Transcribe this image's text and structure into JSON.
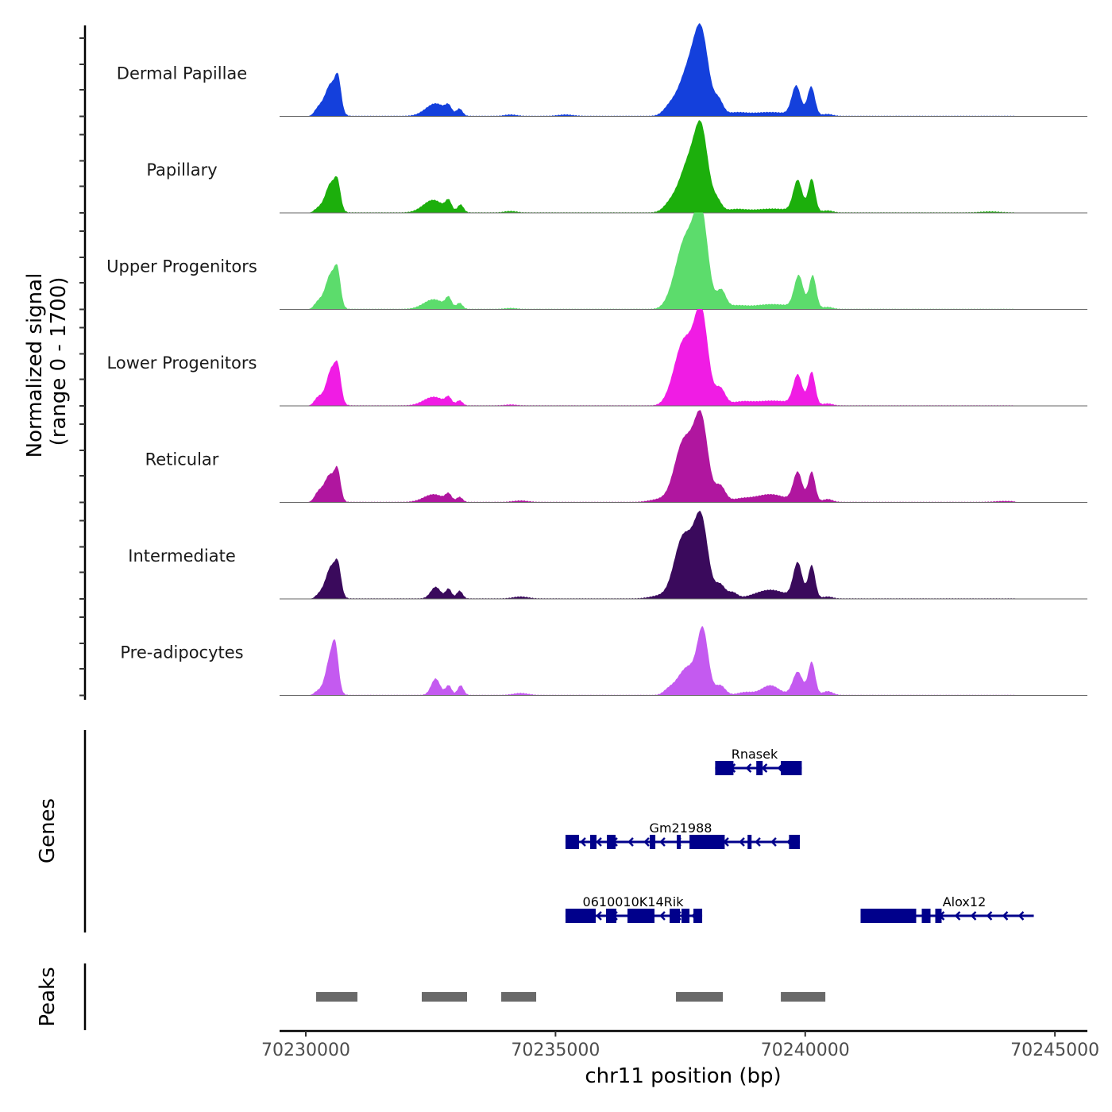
{
  "chart_data": {
    "type": "area",
    "title": "",
    "ylabel": "Normalized signal\n(range 0 - 1700)",
    "ylabel_lines": [
      "Normalized signal",
      "(range 0 - 1700)"
    ],
    "xlabel": "chr11 position (bp)",
    "xlim": [
      70229475,
      70245650
    ],
    "ylim": [
      0,
      1700
    ],
    "x_ticks": [
      70230000,
      70235000,
      70240000,
      70245000
    ],
    "x_tick_labels": [
      "70230000",
      "70235000",
      "70240000",
      "70245000"
    ],
    "grid": false,
    "tracks": [
      {
        "name": "Dermal Papillae",
        "color": "#1440DC",
        "peaks": [
          [
            70230500,
            120,
            0.33
          ],
          [
            70230650,
            60,
            0.28
          ],
          [
            70230250,
            80,
            0.07
          ],
          [
            70232600,
            200,
            0.13
          ],
          [
            70232860,
            60,
            0.07
          ],
          [
            70233080,
            60,
            0.07
          ],
          [
            70234100,
            120,
            0.015
          ],
          [
            70235200,
            150,
            0.015
          ],
          [
            70237270,
            120,
            0.06
          ],
          [
            70237700,
            220,
            0.52
          ],
          [
            70237930,
            140,
            0.62
          ],
          [
            70238270,
            90,
            0.14
          ],
          [
            70238600,
            200,
            0.03
          ],
          [
            70239300,
            400,
            0.04
          ],
          [
            70239820,
            90,
            0.3
          ],
          [
            70240120,
            75,
            0.3
          ],
          [
            70240450,
            100,
            0.02
          ]
        ]
      },
      {
        "name": "Papillary",
        "color": "#1CAF0C",
        "peaks": [
          [
            70230500,
            110,
            0.3
          ],
          [
            70230640,
            60,
            0.22
          ],
          [
            70230250,
            80,
            0.04
          ],
          [
            70232550,
            200,
            0.13
          ],
          [
            70232860,
            60,
            0.1
          ],
          [
            70233100,
            60,
            0.08
          ],
          [
            70234100,
            120,
            0.015
          ],
          [
            70237270,
            120,
            0.05
          ],
          [
            70237700,
            220,
            0.55
          ],
          [
            70237930,
            130,
            0.6
          ],
          [
            70238240,
            90,
            0.1
          ],
          [
            70238600,
            200,
            0.03
          ],
          [
            70239350,
            400,
            0.04
          ],
          [
            70239850,
            90,
            0.32
          ],
          [
            70240130,
            70,
            0.34
          ],
          [
            70240450,
            100,
            0.02
          ],
          [
            70243700,
            200,
            0.01
          ]
        ]
      },
      {
        "name": "Upper Progenitors",
        "color": "#5CDC6C",
        "peaks": [
          [
            70230500,
            110,
            0.36
          ],
          [
            70230640,
            60,
            0.28
          ],
          [
            70230250,
            80,
            0.07
          ],
          [
            70232560,
            200,
            0.1
          ],
          [
            70232860,
            60,
            0.1
          ],
          [
            70233080,
            60,
            0.06
          ],
          [
            70234100,
            120,
            0.01
          ],
          [
            70237270,
            120,
            0.04
          ],
          [
            70237500,
            160,
            0.3
          ],
          [
            70237720,
            200,
            0.6
          ],
          [
            70237930,
            130,
            0.72
          ],
          [
            70238320,
            90,
            0.18
          ],
          [
            70238600,
            200,
            0.03
          ],
          [
            70239350,
            400,
            0.05
          ],
          [
            70239870,
            90,
            0.33
          ],
          [
            70240150,
            70,
            0.34
          ],
          [
            70240450,
            100,
            0.02
          ]
        ]
      },
      {
        "name": "Lower Progenitors",
        "color": "#F01CE4",
        "peaks": [
          [
            70230520,
            110,
            0.38
          ],
          [
            70230650,
            60,
            0.24
          ],
          [
            70230250,
            80,
            0.08
          ],
          [
            70232560,
            200,
            0.09
          ],
          [
            70232860,
            60,
            0.07
          ],
          [
            70233080,
            60,
            0.05
          ],
          [
            70234100,
            120,
            0.01
          ],
          [
            70237270,
            120,
            0.04
          ],
          [
            70237500,
            160,
            0.34
          ],
          [
            70237700,
            200,
            0.46
          ],
          [
            70237930,
            130,
            0.78
          ],
          [
            70238300,
            100,
            0.17
          ],
          [
            70238700,
            200,
            0.03
          ],
          [
            70239350,
            400,
            0.05
          ],
          [
            70239850,
            90,
            0.3
          ],
          [
            70240130,
            70,
            0.34
          ],
          [
            70240450,
            100,
            0.02
          ]
        ]
      },
      {
        "name": "Reticular",
        "color": "#B0169F",
        "peaks": [
          [
            70230480,
            110,
            0.28
          ],
          [
            70230640,
            60,
            0.26
          ],
          [
            70230250,
            80,
            0.09
          ],
          [
            70232560,
            200,
            0.08
          ],
          [
            70232860,
            60,
            0.07
          ],
          [
            70233080,
            60,
            0.05
          ],
          [
            70234300,
            150,
            0.015
          ],
          [
            70237100,
            200,
            0.03
          ],
          [
            70237500,
            160,
            0.34
          ],
          [
            70237720,
            200,
            0.46
          ],
          [
            70237930,
            130,
            0.64
          ],
          [
            70238300,
            100,
            0.16
          ],
          [
            70238700,
            200,
            0.03
          ],
          [
            70239300,
            300,
            0.08
          ],
          [
            70239850,
            90,
            0.3
          ],
          [
            70240130,
            70,
            0.31
          ],
          [
            70240450,
            100,
            0.03
          ],
          [
            70244000,
            200,
            0.01
          ]
        ]
      },
      {
        "name": "Intermediate",
        "color": "#3A0A5C",
        "peaks": [
          [
            70230510,
            110,
            0.33
          ],
          [
            70230650,
            60,
            0.24
          ],
          [
            70230280,
            80,
            0.04
          ],
          [
            70232600,
            100,
            0.12
          ],
          [
            70232860,
            60,
            0.1
          ],
          [
            70233080,
            60,
            0.08
          ],
          [
            70234300,
            150,
            0.02
          ],
          [
            70237100,
            200,
            0.03
          ],
          [
            70237500,
            160,
            0.38
          ],
          [
            70237720,
            200,
            0.42
          ],
          [
            70237930,
            130,
            0.62
          ],
          [
            70238300,
            100,
            0.14
          ],
          [
            70238550,
            90,
            0.06
          ],
          [
            70239300,
            300,
            0.09
          ],
          [
            70239850,
            90,
            0.36
          ],
          [
            70240130,
            70,
            0.34
          ],
          [
            70240450,
            100,
            0.02
          ]
        ]
      },
      {
        "name": "Pre-adipocytes",
        "color": "#C45AF0",
        "peaks": [
          [
            70230500,
            100,
            0.4
          ],
          [
            70230600,
            60,
            0.3
          ],
          [
            70230250,
            80,
            0.04
          ],
          [
            70232600,
            90,
            0.17
          ],
          [
            70232860,
            60,
            0.1
          ],
          [
            70233100,
            60,
            0.1
          ],
          [
            70234300,
            150,
            0.02
          ],
          [
            70237260,
            100,
            0.05
          ],
          [
            70237500,
            140,
            0.14
          ],
          [
            70237700,
            140,
            0.22
          ],
          [
            70237950,
            110,
            0.66
          ],
          [
            70238300,
            100,
            0.1
          ],
          [
            70238800,
            150,
            0.03
          ],
          [
            70239300,
            180,
            0.1
          ],
          [
            70239850,
            100,
            0.24
          ],
          [
            70240130,
            70,
            0.34
          ],
          [
            70240450,
            100,
            0.04
          ]
        ]
      }
    ],
    "genes": [
      {
        "name": "Rnasek",
        "row": 0,
        "start": 70238197,
        "end": 70239931,
        "strand": "-",
        "exons": [
          [
            70238197,
            70238563
          ],
          [
            70239021,
            70239148
          ],
          [
            70239512,
            70239931
          ]
        ]
      },
      {
        "name": "Gm21988",
        "row": 1,
        "start": 70235200,
        "end": 70239892,
        "strand": "-",
        "exons": [
          [
            70235200,
            70235471
          ],
          [
            70235694,
            70235821
          ],
          [
            70236028,
            70236203
          ],
          [
            70236887,
            70236999
          ],
          [
            70237428,
            70237508
          ],
          [
            70237683,
            70238388
          ],
          [
            70238846,
            70238926
          ],
          [
            70239676,
            70239892
          ]
        ]
      },
      {
        "name": "0610010K14Rik",
        "row": 2,
        "start": 70235200,
        "end": 70237937,
        "strand": "-",
        "exons": [
          [
            70235200,
            70235805
          ],
          [
            70236012,
            70236219
          ],
          [
            70236441,
            70236982
          ],
          [
            70237285,
            70237491
          ],
          [
            70237523,
            70237683
          ],
          [
            70237762,
            70237937
          ]
        ]
      },
      {
        "name": "Alox12",
        "row": 2,
        "start": 70241109,
        "end": 70244577,
        "strand": "-",
        "exons": [
          [
            70241109,
            70242222
          ],
          [
            70242334,
            70242509
          ],
          [
            70242604,
            70242731
          ]
        ]
      }
    ],
    "peaks_track": [
      [
        70230207,
        70231034
      ],
      [
        70232322,
        70233229
      ],
      [
        70233913,
        70234613
      ],
      [
        70237412,
        70238351
      ],
      [
        70239512,
        70240403
      ]
    ],
    "panel_labels": {
      "genes": "Genes",
      "peaks": "Peaks"
    },
    "gene_color": "#00008B",
    "peak_color": "#696969"
  }
}
